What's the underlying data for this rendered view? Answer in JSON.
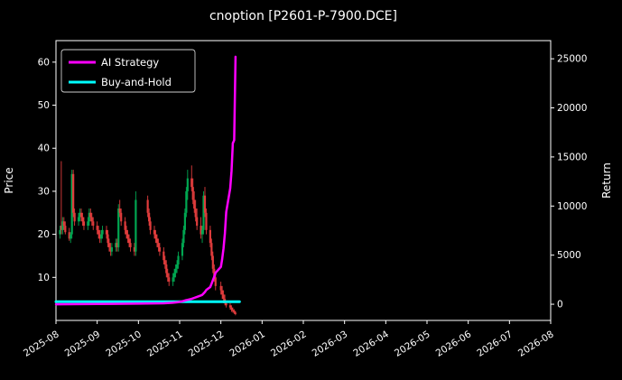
{
  "title": "cnoption [P2601-P-7900.DCE]",
  "legend": {
    "items": [
      {
        "label": "AI Strategy",
        "color": "#ff00ff"
      },
      {
        "label": "Buy-and-Hold",
        "color": "#00ffff"
      }
    ]
  },
  "chart_data": {
    "type": "mixed",
    "subtype": [
      "candlestick",
      "line"
    ],
    "title": "cnoption [P2601-P-7900.DCE]",
    "background": "#000000",
    "text_color": "#ffffff",
    "grid": false,
    "legend_position": "upper-left",
    "left_axis": {
      "label": "Price",
      "ticks": [
        10,
        20,
        30,
        40,
        50,
        60
      ],
      "ylim": [
        0,
        65
      ]
    },
    "right_axis": {
      "label": "Return",
      "ticks": [
        0,
        5000,
        10000,
        15000,
        20000,
        25000
      ],
      "ylim": [
        -1650,
        26850
      ]
    },
    "x_axis": {
      "ticks": [
        "2025-08",
        "2025-09",
        "2025-10",
        "2025-11",
        "2025-12",
        "2026-01",
        "2026-02",
        "2026-03",
        "2026-04",
        "2026-05",
        "2026-06",
        "2026-07",
        "2026-08"
      ],
      "xlim_months": [
        0,
        12
      ]
    },
    "candles": {
      "up_color": "#00a651",
      "down_color": "#e03c3c",
      "columns": [
        "date",
        "open",
        "high",
        "low",
        "close"
      ],
      "data": [
        [
          "2025-08-04",
          20,
          22,
          19,
          21
        ],
        [
          "2025-08-05",
          22,
          37,
          20,
          21
        ],
        [
          "2025-08-06",
          21,
          24,
          20,
          23
        ],
        [
          "2025-08-07",
          23,
          24,
          21,
          22
        ],
        [
          "2025-08-08",
          22,
          23,
          20,
          20.5
        ],
        [
          "2025-08-11",
          20.5,
          21.5,
          18.5,
          19
        ],
        [
          "2025-08-12",
          19,
          20.5,
          18,
          20
        ],
        [
          "2025-08-13",
          20,
          35,
          19,
          34
        ],
        [
          "2025-08-14",
          34,
          35,
          24,
          25
        ],
        [
          "2025-08-15",
          25,
          26,
          22,
          23
        ],
        [
          "2025-08-18",
          23,
          25,
          22,
          24
        ],
        [
          "2025-08-19",
          24,
          26,
          23,
          25
        ],
        [
          "2025-08-20",
          25,
          26,
          23,
          24
        ],
        [
          "2025-08-21",
          24,
          25,
          22,
          23
        ],
        [
          "2025-08-22",
          23,
          24,
          21,
          22
        ],
        [
          "2025-08-25",
          22,
          24,
          21,
          23
        ],
        [
          "2025-08-26",
          23,
          26,
          22,
          25
        ],
        [
          "2025-08-27",
          25,
          26,
          23,
          24
        ],
        [
          "2025-08-28",
          24,
          25,
          22,
          23
        ],
        [
          "2025-08-29",
          23,
          24,
          21,
          22
        ],
        [
          "2025-09-01",
          22,
          23,
          20,
          21
        ],
        [
          "2025-09-02",
          21,
          22,
          19,
          20
        ],
        [
          "2025-09-03",
          20,
          21,
          18,
          19
        ],
        [
          "2025-09-04",
          19,
          21,
          18,
          20
        ],
        [
          "2025-09-05",
          20,
          22,
          19,
          21
        ],
        [
          "2025-09-08",
          21,
          22,
          19,
          20
        ],
        [
          "2025-09-09",
          20,
          21,
          17,
          18
        ],
        [
          "2025-09-10",
          18,
          19,
          16,
          17
        ],
        [
          "2025-09-11",
          17,
          18,
          15,
          16
        ],
        [
          "2025-09-12",
          16,
          18,
          15,
          17
        ],
        [
          "2025-09-15",
          17,
          19,
          16,
          18
        ],
        [
          "2025-09-16",
          18,
          19,
          16,
          17
        ],
        [
          "2025-09-17",
          17,
          27,
          16,
          26
        ],
        [
          "2025-09-18",
          26,
          28,
          24,
          25
        ],
        [
          "2025-09-19",
          25,
          26,
          22,
          23
        ],
        [
          "2025-09-22",
          23,
          24,
          20,
          21
        ],
        [
          "2025-09-23",
          21,
          22,
          19,
          20
        ],
        [
          "2025-09-24",
          20,
          21,
          18,
          19
        ],
        [
          "2025-09-25",
          19,
          20,
          17,
          18
        ],
        [
          "2025-09-26",
          18,
          19,
          16,
          17
        ],
        [
          "2025-09-29",
          17,
          18,
          15,
          16
        ],
        [
          "2025-09-30",
          16,
          30,
          15,
          28
        ],
        [
          "2025-10-08",
          28,
          29,
          24,
          25
        ],
        [
          "2025-10-09",
          25,
          26,
          22,
          23
        ],
        [
          "2025-10-10",
          23,
          24,
          20,
          21
        ],
        [
          "2025-10-13",
          21,
          22,
          19,
          20
        ],
        [
          "2025-10-14",
          20,
          21,
          18,
          19
        ],
        [
          "2025-10-15",
          19,
          20,
          17,
          18
        ],
        [
          "2025-10-16",
          18,
          19,
          16,
          17
        ],
        [
          "2025-10-17",
          17,
          18,
          15,
          16
        ],
        [
          "2025-10-20",
          16,
          17,
          13,
          14
        ],
        [
          "2025-10-21",
          14,
          15,
          12,
          13
        ],
        [
          "2025-10-22",
          13,
          14,
          10,
          11
        ],
        [
          "2025-10-23",
          11,
          12,
          9,
          10
        ],
        [
          "2025-10-24",
          10,
          11,
          8,
          9
        ],
        [
          "2025-10-27",
          9,
          11,
          8,
          10
        ],
        [
          "2025-10-28",
          10,
          12,
          9,
          11
        ],
        [
          "2025-10-29",
          11,
          13,
          10,
          12
        ],
        [
          "2025-10-30",
          12,
          14,
          11,
          13
        ],
        [
          "2025-10-31",
          13,
          16,
          12,
          15
        ],
        [
          "2025-11-03",
          15,
          19,
          14,
          18
        ],
        [
          "2025-11-04",
          18,
          22,
          17,
          21
        ],
        [
          "2025-11-05",
          21,
          26,
          20,
          25
        ],
        [
          "2025-11-06",
          25,
          31,
          24,
          30
        ],
        [
          "2025-11-07",
          30,
          35,
          28,
          33
        ],
        [
          "2025-11-10",
          33,
          36,
          30,
          31
        ],
        [
          "2025-11-11",
          31,
          33,
          27,
          28
        ],
        [
          "2025-11-12",
          28,
          30,
          25,
          26
        ],
        [
          "2025-11-13",
          26,
          28,
          23,
          24
        ],
        [
          "2025-11-14",
          24,
          26,
          21,
          22
        ],
        [
          "2025-11-17",
          22,
          24,
          19,
          20
        ],
        [
          "2025-11-18",
          20,
          22,
          18,
          21
        ],
        [
          "2025-11-19",
          21,
          30,
          20,
          29
        ],
        [
          "2025-11-20",
          29,
          31,
          24,
          25
        ],
        [
          "2025-11-21",
          25,
          26,
          20,
          21
        ],
        [
          "2025-11-24",
          21,
          22,
          17,
          18
        ],
        [
          "2025-11-25",
          18,
          19,
          14,
          15
        ],
        [
          "2025-11-26",
          15,
          16,
          11,
          12
        ],
        [
          "2025-11-27",
          12,
          13,
          9,
          10
        ],
        [
          "2025-11-28",
          10,
          11,
          7,
          8
        ],
        [
          "2025-12-01",
          8,
          9,
          6,
          7
        ],
        [
          "2025-12-02",
          7,
          8,
          5,
          6
        ],
        [
          "2025-12-03",
          6,
          7,
          4,
          5
        ],
        [
          "2025-12-04",
          5,
          6,
          3.5,
          4
        ],
        [
          "2025-12-05",
          4,
          4.5,
          3,
          3.5
        ],
        [
          "2025-12-08",
          3.5,
          4,
          2.5,
          3
        ],
        [
          "2025-12-09",
          3,
          3.5,
          2,
          2.5
        ],
        [
          "2025-12-10",
          2.5,
          3,
          1.8,
          2.2
        ],
        [
          "2025-12-11",
          2.2,
          2.6,
          1.5,
          1.8
        ],
        [
          "2025-12-12",
          1.8,
          2.2,
          1.2,
          1.5
        ]
      ]
    },
    "series": [
      {
        "name": "Buy-and-Hold",
        "axis": "right",
        "color": "#00ffff",
        "width": 3,
        "points": [
          [
            "2025-08-01",
            250
          ],
          [
            "2025-12-15",
            250
          ]
        ]
      },
      {
        "name": "AI Strategy",
        "axis": "right",
        "color": "#ff00ff",
        "width": 2.5,
        "points": [
          [
            "2025-08-01",
            0
          ],
          [
            "2025-09-01",
            30
          ],
          [
            "2025-10-01",
            60
          ],
          [
            "2025-10-20",
            100
          ],
          [
            "2025-10-27",
            150
          ],
          [
            "2025-10-31",
            220
          ],
          [
            "2025-11-03",
            300
          ],
          [
            "2025-11-05",
            380
          ],
          [
            "2025-11-07",
            450
          ],
          [
            "2025-11-10",
            550
          ],
          [
            "2025-11-12",
            650
          ],
          [
            "2025-11-14",
            750
          ],
          [
            "2025-11-17",
            900
          ],
          [
            "2025-11-18",
            950
          ],
          [
            "2025-11-19",
            1100
          ],
          [
            "2025-11-20",
            1250
          ],
          [
            "2025-11-21",
            1450
          ],
          [
            "2025-11-24",
            1750
          ],
          [
            "2025-11-25",
            2100
          ],
          [
            "2025-11-26",
            2450
          ],
          [
            "2025-11-27",
            2800
          ],
          [
            "2025-11-28",
            3200
          ],
          [
            "2025-12-01",
            3800
          ],
          [
            "2025-12-02",
            4600
          ],
          [
            "2025-12-03",
            5700
          ],
          [
            "2025-12-04",
            7200
          ],
          [
            "2025-12-05",
            9400
          ],
          [
            "2025-12-08",
            11800
          ],
          [
            "2025-12-09",
            13600
          ],
          [
            "2025-12-10",
            16400
          ],
          [
            "2025-12-11",
            16700
          ],
          [
            "2025-12-12",
            25200
          ]
        ]
      }
    ]
  }
}
